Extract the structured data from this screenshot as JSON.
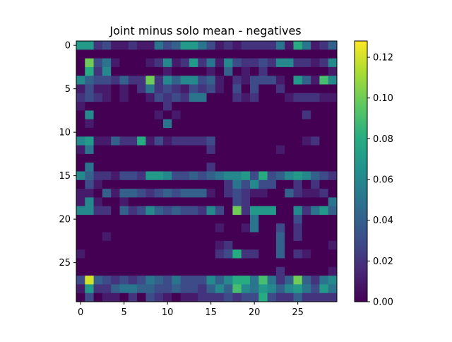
{
  "chart_data": {
    "type": "heatmap",
    "title": "Joint minus solo mean - negatives",
    "xlabel": "",
    "ylabel": "",
    "rows": 30,
    "cols": 30,
    "x_ticks": [
      0,
      5,
      10,
      15,
      20,
      25
    ],
    "y_ticks": [
      0,
      5,
      10,
      15,
      20,
      25
    ],
    "colormap": "viridis",
    "colorbar": {
      "min": 0.0,
      "max": 0.128,
      "ticks": [
        "0.00",
        "0.02",
        "0.04",
        "0.06",
        "0.08",
        "0.10",
        "0.12"
      ]
    },
    "values": [
      [
        0.07,
        0.07,
        0.02,
        0.03,
        0.01,
        0.01,
        0.02,
        0.01,
        0.01,
        0.05,
        0.03,
        0.04,
        0.07,
        0.07,
        0.05,
        0.03,
        0.01,
        0.02,
        0.01,
        0.02,
        0.02,
        0.02,
        0.02,
        0.05,
        0.01,
        0.08,
        0.05,
        0.01,
        0.02,
        0.04
      ],
      [
        0.0,
        0.0,
        0.0,
        0.0,
        0.0,
        0.0,
        0.0,
        0.0,
        0.0,
        0.0,
        0.0,
        0.0,
        0.0,
        0.0,
        0.0,
        0.0,
        0.0,
        0.0,
        0.0,
        0.0,
        0.0,
        0.0,
        0.0,
        0.0,
        0.0,
        0.0,
        0.0,
        0.0,
        0.0,
        0.0
      ],
      [
        0.0,
        0.1,
        0.03,
        0.05,
        0.01,
        0.0,
        0.0,
        0.0,
        0.01,
        0.02,
        0.06,
        0.01,
        0.02,
        0.07,
        0.02,
        0.05,
        0.01,
        0.06,
        0.03,
        0.02,
        0.02,
        0.03,
        0.02,
        0.06,
        0.06,
        0.02,
        0.02,
        0.01,
        0.02,
        0.06
      ],
      [
        0.0,
        0.08,
        0.02,
        0.06,
        0.0,
        0.0,
        0.0,
        0.0,
        0.0,
        0.0,
        0.01,
        0.0,
        0.0,
        0.0,
        0.0,
        0.01,
        0.0,
        0.04,
        0.0,
        0.01,
        0.0,
        0.02,
        0.0,
        0.0,
        0.0,
        0.0,
        0.0,
        0.0,
        0.0,
        0.01
      ],
      [
        0.06,
        0.04,
        0.03,
        0.03,
        0.02,
        0.04,
        0.02,
        0.02,
        0.1,
        0.02,
        0.06,
        0.04,
        0.06,
        0.06,
        0.03,
        0.04,
        0.01,
        0.0,
        0.02,
        0.01,
        0.03,
        0.03,
        0.03,
        0.01,
        0.0,
        0.07,
        0.04,
        0.01,
        0.09,
        0.06
      ],
      [
        0.01,
        0.03,
        0.01,
        0.01,
        0.0,
        0.01,
        0.0,
        0.02,
        0.05,
        0.02,
        0.03,
        0.02,
        0.01,
        0.03,
        0.02,
        0.03,
        0.01,
        0.0,
        0.03,
        0.0,
        0.03,
        0.0,
        0.0,
        0.02,
        0.0,
        0.0,
        0.0,
        0.0,
        0.0,
        0.0
      ],
      [
        0.02,
        0.03,
        0.02,
        0.01,
        0.0,
        0.01,
        0.0,
        0.0,
        0.01,
        0.03,
        0.02,
        0.03,
        0.02,
        0.05,
        0.05,
        0.0,
        0.0,
        0.0,
        0.02,
        0.01,
        0.02,
        0.0,
        0.0,
        0.0,
        0.01,
        0.02,
        0.02,
        0.02,
        0.01,
        0.01
      ],
      [
        0.01,
        0.0,
        0.0,
        0.0,
        0.0,
        0.0,
        0.0,
        0.0,
        0.0,
        0.0,
        0.02,
        0.0,
        0.0,
        0.0,
        0.0,
        0.0,
        0.0,
        0.0,
        0.0,
        0.0,
        0.0,
        0.0,
        0.0,
        0.0,
        0.0,
        0.0,
        0.0,
        0.0,
        0.0,
        0.0
      ],
      [
        0.0,
        0.06,
        0.0,
        0.0,
        0.0,
        0.0,
        0.0,
        0.0,
        0.0,
        0.01,
        0.0,
        0.01,
        0.0,
        0.0,
        0.0,
        0.0,
        0.0,
        0.0,
        0.0,
        0.0,
        0.0,
        0.0,
        0.0,
        0.0,
        0.0,
        0.0,
        0.02,
        0.0,
        0.0,
        0.0
      ],
      [
        0.0,
        0.01,
        0.0,
        0.0,
        0.0,
        0.0,
        0.0,
        0.0,
        0.0,
        0.0,
        0.05,
        0.0,
        0.0,
        0.0,
        0.0,
        0.0,
        0.0,
        0.0,
        0.0,
        0.0,
        0.0,
        0.0,
        0.0,
        0.0,
        0.0,
        0.0,
        0.0,
        0.0,
        0.0,
        0.0
      ],
      [
        0.0,
        0.0,
        0.0,
        0.0,
        0.0,
        0.0,
        0.0,
        0.0,
        0.0,
        0.0,
        0.0,
        0.0,
        0.0,
        0.0,
        0.0,
        0.0,
        0.0,
        0.0,
        0.0,
        0.0,
        0.0,
        0.0,
        0.0,
        0.0,
        0.0,
        0.0,
        0.0,
        0.0,
        0.0,
        0.0
      ],
      [
        0.06,
        0.07,
        0.01,
        0.01,
        0.04,
        0.02,
        0.02,
        0.08,
        0.01,
        0.03,
        0.01,
        0.02,
        0.02,
        0.02,
        0.02,
        0.03,
        0.0,
        0.0,
        0.0,
        0.0,
        0.0,
        0.0,
        0.0,
        0.0,
        0.0,
        0.0,
        0.01,
        0.02,
        0.0,
        0.0
      ],
      [
        0.01,
        0.05,
        0.0,
        0.0,
        0.0,
        0.0,
        0.0,
        0.0,
        0.0,
        0.0,
        0.0,
        0.0,
        0.0,
        0.0,
        0.0,
        0.02,
        0.0,
        0.0,
        0.0,
        0.0,
        0.0,
        0.0,
        0.0,
        0.01,
        0.0,
        0.0,
        0.0,
        0.0,
        0.0,
        0.0
      ],
      [
        0.0,
        0.0,
        0.0,
        0.0,
        0.0,
        0.0,
        0.0,
        0.0,
        0.0,
        0.0,
        0.0,
        0.0,
        0.0,
        0.0,
        0.0,
        0.0,
        0.0,
        0.0,
        0.0,
        0.0,
        0.0,
        0.0,
        0.0,
        0.0,
        0.0,
        0.0,
        0.0,
        0.0,
        0.0,
        0.0
      ],
      [
        0.0,
        0.05,
        0.0,
        0.0,
        0.0,
        0.0,
        0.0,
        0.0,
        0.0,
        0.0,
        0.0,
        0.0,
        0.0,
        0.0,
        0.0,
        0.02,
        0.0,
        0.0,
        0.0,
        0.0,
        0.0,
        0.0,
        0.0,
        0.0,
        0.0,
        0.0,
        0.0,
        0.0,
        0.0,
        0.0
      ],
      [
        0.06,
        0.04,
        0.02,
        0.02,
        0.01,
        0.03,
        0.03,
        0.02,
        0.07,
        0.07,
        0.06,
        0.03,
        0.03,
        0.04,
        0.03,
        0.04,
        0.05,
        0.06,
        0.06,
        0.07,
        0.03,
        0.08,
        0.03,
        0.04,
        0.06,
        0.07,
        0.06,
        0.04,
        0.03,
        0.02
      ],
      [
        0.0,
        0.03,
        0.01,
        0.0,
        0.0,
        0.0,
        0.0,
        0.0,
        0.0,
        0.0,
        0.0,
        0.0,
        0.0,
        0.0,
        0.0,
        0.0,
        0.0,
        0.02,
        0.05,
        0.03,
        0.06,
        0.03,
        0.03,
        0.0,
        0.0,
        0.02,
        0.0,
        0.02,
        0.0,
        0.0
      ],
      [
        0.01,
        0.01,
        0.0,
        0.04,
        0.01,
        0.04,
        0.04,
        0.03,
        0.02,
        0.03,
        0.04,
        0.03,
        0.04,
        0.04,
        0.04,
        0.01,
        0.0,
        0.02,
        0.03,
        0.02,
        0.01,
        0.01,
        0.0,
        0.0,
        0.04,
        0.02,
        0.01,
        0.01,
        0.02,
        0.0
      ],
      [
        0.01,
        0.06,
        0.01,
        0.0,
        0.0,
        0.01,
        0.0,
        0.0,
        0.0,
        0.0,
        0.0,
        0.0,
        0.0,
        0.0,
        0.0,
        0.0,
        0.0,
        0.0,
        0.03,
        0.02,
        0.0,
        0.0,
        0.0,
        0.0,
        0.0,
        0.0,
        0.0,
        0.0,
        0.0,
        0.05
      ],
      [
        0.06,
        0.06,
        0.02,
        0.02,
        0.0,
        0.04,
        0.02,
        0.03,
        0.06,
        0.04,
        0.03,
        0.04,
        0.03,
        0.03,
        0.02,
        0.06,
        0.03,
        0.0,
        0.1,
        0.02,
        0.07,
        0.07,
        0.07,
        0.0,
        0.0,
        0.06,
        0.02,
        0.05,
        0.07,
        0.04
      ],
      [
        0.0,
        0.0,
        0.0,
        0.0,
        0.0,
        0.0,
        0.0,
        0.0,
        0.0,
        0.0,
        0.0,
        0.0,
        0.0,
        0.0,
        0.0,
        0.0,
        0.0,
        0.0,
        0.0,
        0.0,
        0.05,
        0.0,
        0.0,
        0.0,
        0.0,
        0.03,
        0.0,
        0.0,
        0.0,
        0.0
      ],
      [
        0.0,
        0.0,
        0.0,
        0.0,
        0.0,
        0.0,
        0.0,
        0.0,
        0.0,
        0.0,
        0.0,
        0.0,
        0.0,
        0.0,
        0.0,
        0.0,
        0.01,
        0.0,
        0.0,
        0.01,
        0.05,
        0.0,
        0.0,
        0.03,
        0.0,
        0.02,
        0.0,
        0.0,
        0.0,
        0.0
      ],
      [
        0.0,
        0.0,
        0.0,
        0.01,
        0.0,
        0.0,
        0.0,
        0.0,
        0.0,
        0.0,
        0.0,
        0.0,
        0.0,
        0.0,
        0.0,
        0.0,
        0.0,
        0.0,
        0.0,
        0.0,
        0.0,
        0.0,
        0.0,
        0.04,
        0.0,
        0.02,
        0.0,
        0.0,
        0.0,
        0.0
      ],
      [
        0.0,
        0.0,
        0.0,
        0.0,
        0.0,
        0.0,
        0.0,
        0.0,
        0.0,
        0.0,
        0.0,
        0.0,
        0.0,
        0.0,
        0.0,
        0.0,
        0.01,
        0.02,
        0.0,
        0.0,
        0.0,
        0.0,
        0.0,
        0.04,
        0.0,
        0.0,
        0.0,
        0.0,
        0.0,
        0.01
      ],
      [
        0.01,
        0.0,
        0.0,
        0.0,
        0.0,
        0.0,
        0.0,
        0.0,
        0.0,
        0.0,
        0.0,
        0.0,
        0.0,
        0.0,
        0.0,
        0.0,
        0.02,
        0.03,
        0.08,
        0.02,
        0.02,
        0.0,
        0.0,
        0.04,
        0.0,
        0.02,
        0.01,
        0.0,
        0.0,
        0.0
      ],
      [
        0.0,
        0.0,
        0.0,
        0.0,
        0.0,
        0.0,
        0.0,
        0.0,
        0.0,
        0.0,
        0.0,
        0.0,
        0.0,
        0.0,
        0.0,
        0.0,
        0.0,
        0.0,
        0.0,
        0.0,
        0.0,
        0.0,
        0.0,
        0.0,
        0.0,
        0.0,
        0.0,
        0.0,
        0.0,
        0.0
      ],
      [
        0.0,
        0.0,
        0.0,
        0.0,
        0.0,
        0.0,
        0.0,
        0.0,
        0.0,
        0.0,
        0.0,
        0.0,
        0.0,
        0.0,
        0.0,
        0.0,
        0.0,
        0.0,
        0.0,
        0.0,
        0.0,
        0.0,
        0.0,
        0.02,
        0.0,
        0.0,
        0.0,
        0.0,
        0.0,
        0.01
      ],
      [
        0.03,
        0.12,
        0.04,
        0.03,
        0.02,
        0.03,
        0.02,
        0.03,
        0.05,
        0.04,
        0.03,
        0.05,
        0.03,
        0.03,
        0.03,
        0.06,
        0.04,
        0.06,
        0.08,
        0.08,
        0.05,
        0.09,
        0.05,
        0.02,
        0.04,
        0.1,
        0.04,
        0.02,
        0.05,
        0.06
      ],
      [
        0.01,
        0.07,
        0.02,
        0.02,
        0.04,
        0.05,
        0.05,
        0.04,
        0.04,
        0.03,
        0.03,
        0.04,
        0.03,
        0.03,
        0.02,
        0.04,
        0.06,
        0.04,
        0.09,
        0.06,
        0.05,
        0.07,
        0.06,
        0.04,
        0.06,
        0.07,
        0.05,
        0.03,
        0.07,
        0.05
      ],
      [
        0.0,
        0.03,
        0.0,
        0.01,
        0.01,
        0.0,
        0.02,
        0.0,
        0.03,
        0.02,
        0.01,
        0.0,
        0.01,
        0.01,
        0.02,
        0.02,
        0.02,
        0.03,
        0.02,
        0.03,
        0.03,
        0.08,
        0.03,
        0.02,
        0.02,
        0.04,
        0.02,
        0.02,
        0.02,
        0.02
      ]
    ]
  }
}
